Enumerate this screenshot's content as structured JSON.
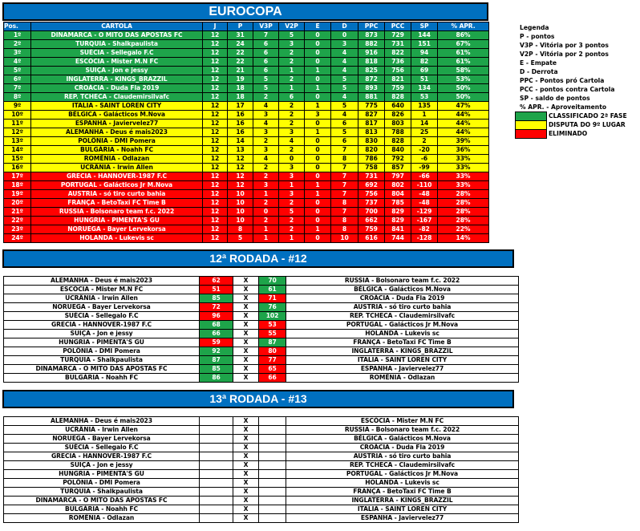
{
  "title": "EUROCOPA",
  "colors": {
    "header": "#0070c0",
    "classified": "#1ea44a",
    "playoff": "#ffff00",
    "eliminated": "#ff0000"
  },
  "standings": {
    "columns": [
      "Pos.",
      "CARTOLA",
      "J",
      "P",
      "V3P",
      "V2P",
      "E",
      "D",
      "PPC",
      "PCC",
      "SP",
      "% APR."
    ],
    "rows": [
      [
        "1º",
        "DINAMARCA - O MITO DAS APOSTAS FC",
        "12",
        "31",
        "7",
        "5",
        "0",
        "0",
        "873",
        "729",
        "144",
        "86%"
      ],
      [
        "2º",
        "TURQUIA - Shalkpaulista",
        "12",
        "24",
        "6",
        "3",
        "0",
        "3",
        "882",
        "731",
        "151",
        "67%"
      ],
      [
        "3º",
        "SUÉCIA - Sellegalo F.C",
        "12",
        "22",
        "6",
        "2",
        "0",
        "4",
        "916",
        "822",
        "94",
        "61%"
      ],
      [
        "4º",
        "ESCÓCIA - Mister M.N FC",
        "12",
        "22",
        "6",
        "2",
        "0",
        "4",
        "818",
        "736",
        "82",
        "61%"
      ],
      [
        "5º",
        "SUIÇA - Jon e jessy",
        "12",
        "21",
        "6",
        "1",
        "1",
        "4",
        "825",
        "756",
        "69",
        "58%"
      ],
      [
        "6º",
        "INGLATERRA - KINGS_BRAZZIL",
        "12",
        "19",
        "5",
        "2",
        "0",
        "5",
        "872",
        "821",
        "51",
        "53%"
      ],
      [
        "7º",
        "CROÁCIA - Duda Fla 2019",
        "12",
        "18",
        "5",
        "1",
        "1",
        "5",
        "893",
        "759",
        "134",
        "50%"
      ],
      [
        "8º",
        "REP. TCHECA - Claudemirsilvafc",
        "12",
        "18",
        "2",
        "6",
        "0",
        "4",
        "881",
        "828",
        "53",
        "50%"
      ],
      [
        "9º",
        "ITALIA - SAINT LOREN CITY",
        "12",
        "17",
        "4",
        "2",
        "1",
        "5",
        "775",
        "640",
        "135",
        "47%"
      ],
      [
        "10º",
        "BÉLGICA - Galácticos M.Nova",
        "12",
        "16",
        "3",
        "2",
        "3",
        "4",
        "827",
        "826",
        "1",
        "44%"
      ],
      [
        "11º",
        "ESPANHA - Javiervelez77",
        "12",
        "16",
        "4",
        "2",
        "0",
        "6",
        "817",
        "803",
        "14",
        "44%"
      ],
      [
        "12º",
        "ALEMANHA - Deus é mais2023",
        "12",
        "16",
        "3",
        "3",
        "1",
        "5",
        "813",
        "788",
        "25",
        "44%"
      ],
      [
        "13º",
        "POLÔNIA - DMI Pomera",
        "12",
        "14",
        "2",
        "4",
        "0",
        "6",
        "830",
        "828",
        "2",
        "39%"
      ],
      [
        "14º",
        "BULGÁRIA - Noahh FC",
        "12",
        "13",
        "3",
        "2",
        "0",
        "7",
        "820",
        "840",
        "-20",
        "36%"
      ],
      [
        "15º",
        "ROMÊNIA - Odlazan",
        "12",
        "12",
        "4",
        "0",
        "0",
        "8",
        "786",
        "792",
        "-6",
        "33%"
      ],
      [
        "16º",
        "UCRÂNIA - Irwin Allen",
        "12",
        "12",
        "2",
        "3",
        "0",
        "7",
        "758",
        "857",
        "-99",
        "33%"
      ],
      [
        "17º",
        "GRECIA - HANNOVER-1987 F.C",
        "12",
        "12",
        "2",
        "3",
        "0",
        "7",
        "731",
        "797",
        "-66",
        "33%"
      ],
      [
        "18º",
        "PORTUGAL - Galácticos Jr M.Nova",
        "12",
        "12",
        "3",
        "1",
        "1",
        "7",
        "692",
        "802",
        "-110",
        "33%"
      ],
      [
        "19º",
        "AUSTRIA - só tiro curto bahia",
        "12",
        "10",
        "1",
        "3",
        "1",
        "7",
        "756",
        "804",
        "-48",
        "28%"
      ],
      [
        "20º",
        "FRANÇA - BetoTaxi FC Time B",
        "12",
        "10",
        "2",
        "2",
        "0",
        "8",
        "737",
        "785",
        "-48",
        "28%"
      ],
      [
        "21º",
        "RUSSIA - Bolsonaro team f.c. 2022",
        "12",
        "10",
        "0",
        "5",
        "0",
        "7",
        "700",
        "829",
        "-129",
        "28%"
      ],
      [
        "22º",
        "HUNGRIA - PIMENTA'S GU",
        "12",
        "10",
        "2",
        "2",
        "0",
        "8",
        "662",
        "829",
        "-167",
        "28%"
      ],
      [
        "23º",
        "NORUEGA  - Bayer Lervekorsa",
        "12",
        "8",
        "1",
        "2",
        "1",
        "8",
        "759",
        "841",
        "-82",
        "22%"
      ],
      [
        "24º",
        "HOLANDA - Lukevis sc",
        "12",
        "5",
        "1",
        "1",
        "0",
        "10",
        "616",
        "744",
        "-128",
        "14%"
      ]
    ]
  },
  "legend": {
    "items": [
      "Legenda",
      "P - pontos",
      "V3P - Vitória por 3 pontos",
      "V2P - Vitória por 2 pontos",
      "E - Empate",
      "D - Derrota",
      "PPC - Pontos pró Cartola",
      "PCC - pontos contra Cartola",
      "SP - saldo de pontos",
      "% APR. - Aproveitamento"
    ],
    "keys": [
      "CLASSIFICADO 2ª FASE",
      "DISPUTA DO 9º LUGAR",
      "ELIMINADO"
    ]
  },
  "round12": {
    "title": "12ª RODADA - #12",
    "matches": [
      {
        "home": "ALEMANHA - Deus é mais2023",
        "hs": "62",
        "vs": "X",
        "as": "70",
        "away": "RUSSIA - Bolsonaro team f.c. 2022"
      },
      {
        "home": "ESCÓCIA - Mister M.N FC",
        "hs": "51",
        "vs": "X",
        "as": "61",
        "away": "BÉLGICA - Galácticos M.Nova"
      },
      {
        "home": "UCRÂNIA - Irwin Allen",
        "hs": "85",
        "vs": "X",
        "as": "71",
        "away": "CROÁCIA - Duda Fla 2019"
      },
      {
        "home": "NORUEGA  - Bayer Lervekorsa",
        "hs": "72",
        "vs": "X",
        "as": "76",
        "away": "AUSTRIA - só tiro curto bahia"
      },
      {
        "home": "SUÉCIA - Sellegalo F.C",
        "hs": "96",
        "vs": "X",
        "as": "102",
        "away": "REP. TCHECA - Claudemirsilvafc"
      },
      {
        "home": "GRECIA - HANNOVER-1987 F.C",
        "hs": "68",
        "vs": "X",
        "as": "53",
        "away": "PORTUGAL - Galácticos Jr M.Nova"
      },
      {
        "home": "SUIÇA - Jon e jessy",
        "hs": "66",
        "vs": "X",
        "as": "55",
        "away": "HOLANDA - Lukevis sc"
      },
      {
        "home": "HUNGRIA - PIMENTA'S GU",
        "hs": "59",
        "vs": "X",
        "as": "87",
        "away": "FRANÇA - BetoTaxi FC Time B"
      },
      {
        "home": "POLÔNIA - DMI Pomera",
        "hs": "92",
        "vs": "X",
        "as": "80",
        "away": "INGLATERRA - KINGS_BRAZZIL"
      },
      {
        "home": "TURQUIA - Shalkpaulista",
        "hs": "87",
        "vs": "X",
        "as": "77",
        "away": "ITALIA - SAINT LOREN CITY"
      },
      {
        "home": "DINAMARCA - O MITO DAS APOSTAS FC",
        "hs": "85",
        "vs": "X",
        "as": "65",
        "away": "ESPANHA - Javiervelez77"
      },
      {
        "home": "BULGÁRIA - Noahh FC",
        "hs": "86",
        "vs": "X",
        "as": "66",
        "away": "ROMÊNIA - Odlazan"
      }
    ]
  },
  "round13": {
    "title": "13ª RODADA - #13",
    "matches": [
      {
        "home": "ALEMANHA - Deus é mais2023",
        "hs": "",
        "vs": "X",
        "as": "",
        "away": "ESCÓCIA - Mister M.N FC"
      },
      {
        "home": "UCRÂNIA - Irwin Allen",
        "hs": "",
        "vs": "X",
        "as": "",
        "away": "RUSSIA - Bolsonaro team f.c. 2022"
      },
      {
        "home": "NORUEGA  - Bayer Lervekorsa",
        "hs": "",
        "vs": "X",
        "as": "",
        "away": "BÉLGICA - Galácticos M.Nova"
      },
      {
        "home": "SUÉCIA - Sellegalo F.C",
        "hs": "",
        "vs": "X",
        "as": "",
        "away": "CROÁCIA - Duda Fla 2019"
      },
      {
        "home": "GRECIA - HANNOVER-1987 F.C",
        "hs": "",
        "vs": "X",
        "as": "",
        "away": "AUSTRIA - só tiro curto bahia"
      },
      {
        "home": "SUIÇA - Jon e jessy",
        "hs": "",
        "vs": "X",
        "as": "",
        "away": "REP. TCHECA - Claudemirsilvafc"
      },
      {
        "home": "HUNGRIA - PIMENTA'S GU",
        "hs": "",
        "vs": "X",
        "as": "",
        "away": "PORTUGAL - Galácticos Jr M.Nova"
      },
      {
        "home": "POLÔNIA - DMI Pomera",
        "hs": "",
        "vs": "X",
        "as": "",
        "away": "HOLANDA - Lukevis sc"
      },
      {
        "home": "TURQUIA - Shalkpaulista",
        "hs": "",
        "vs": "X",
        "as": "",
        "away": "FRANÇA - BetoTaxi FC Time B"
      },
      {
        "home": "DINAMARCA - O MITO DAS APOSTAS FC",
        "hs": "",
        "vs": "X",
        "as": "",
        "away": "INGLATERRA - KINGS_BRAZZIL"
      },
      {
        "home": "BULGÁRIA - Noahh FC",
        "hs": "",
        "vs": "X",
        "as": "",
        "away": "ITALIA - SAINT LOREN CITY"
      },
      {
        "home": "ROMÊNIA - Odlazan",
        "hs": "",
        "vs": "X",
        "as": "",
        "away": "ESPANHA - Javiervelez77"
      }
    ]
  }
}
